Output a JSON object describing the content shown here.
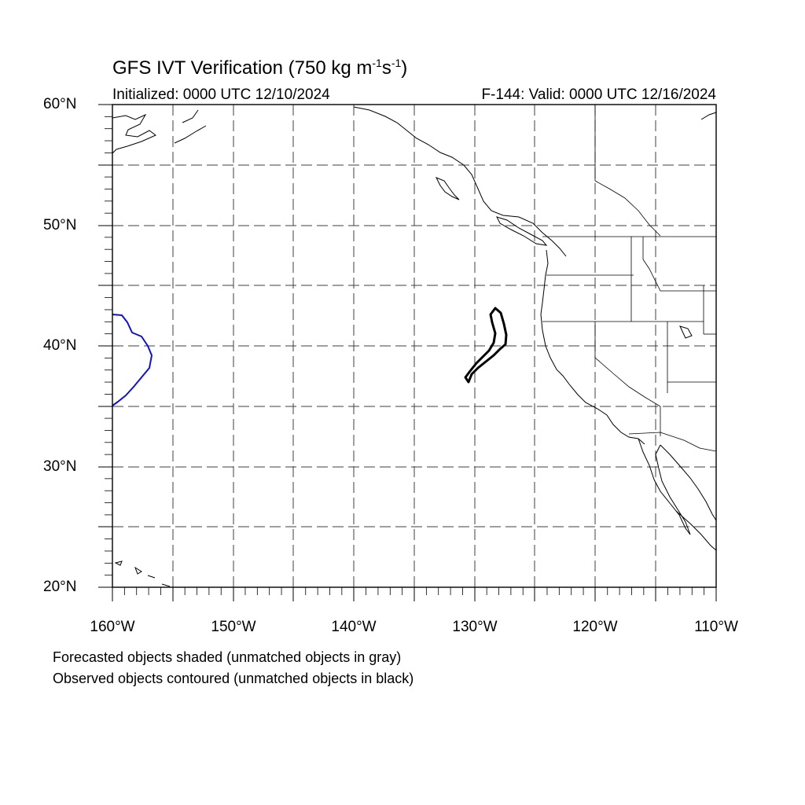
{
  "header": {
    "title_main": "GFS IVT Verification (750 kg m",
    "title_sup1": "-1",
    "title_mid": "s",
    "title_sup2": "-1",
    "title_end": ")",
    "initialized": "Initialized: 0000 UTC 12/10/2024",
    "valid": "F-144: Valid: 0000 UTC 12/16/2024"
  },
  "axes": {
    "lat_labels": [
      "60°N",
      "50°N",
      "40°N",
      "30°N",
      "20°N"
    ],
    "lon_labels": [
      "160°W",
      "150°W",
      "140°W",
      "130°W",
      "120°W",
      "110°W"
    ],
    "lat_range": [
      20,
      60
    ],
    "lon_range": [
      -160,
      -110
    ]
  },
  "legend": {
    "line1": "Forecasted objects shaded (unmatched objects in gray)",
    "line2": "Observed objects contoured (unmatched objects in black)"
  },
  "objects": {
    "observed_matched_color": "#1010d0",
    "observed_unmatched_color": "#000000"
  }
}
